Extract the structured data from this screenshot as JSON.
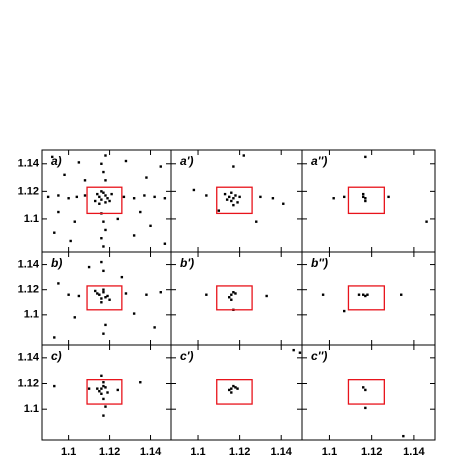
{
  "chart_data": [
    {
      "type": "scatter",
      "label": "a)",
      "color": "#000000",
      "box_color": "#e8131b",
      "box": [
        1.109,
        1.126,
        1.104,
        1.123
      ],
      "xlim": [
        1.087,
        1.15
      ],
      "ylim": [
        1.076,
        1.15
      ],
      "xticks": [
        1.1,
        1.12,
        1.14
      ],
      "yticks": [
        1.1,
        1.12,
        1.14
      ],
      "x": [
        1.115,
        1.118,
        1.116,
        1.119,
        1.114,
        1.117,
        1.12,
        1.113,
        1.116,
        1.121,
        1.118,
        1.115,
        1.09,
        1.095,
        1.1,
        1.104,
        1.108,
        1.127,
        1.132,
        1.137,
        1.142,
        1.147,
        1.117,
        1.116,
        1.118,
        1.117,
        1.116,
        1.118,
        1.117,
        1.116,
        1.118,
        1.092,
        1.098,
        1.105,
        1.128,
        1.138,
        1.145,
        1.093,
        1.101,
        1.132,
        1.14,
        1.147,
        1.124,
        1.108,
        1.135,
        1.095,
        1.103
      ],
      "y": [
        1.116,
        1.117,
        1.114,
        1.115,
        1.118,
        1.119,
        1.113,
        1.113,
        1.12,
        1.118,
        1.112,
        1.111,
        1.116,
        1.117,
        1.115,
        1.116,
        1.117,
        1.116,
        1.115,
        1.117,
        1.116,
        1.115,
        1.08,
        1.086,
        1.092,
        1.098,
        1.104,
        1.128,
        1.134,
        1.14,
        1.146,
        1.145,
        1.132,
        1.141,
        1.142,
        1.13,
        1.138,
        1.09,
        1.084,
        1.088,
        1.095,
        1.082,
        1.1,
        1.128,
        1.105,
        1.105,
        1.098
      ]
    },
    {
      "type": "scatter",
      "label": "a')",
      "color": "#000000",
      "box_color": "#e8131b",
      "box": [
        1.109,
        1.126,
        1.104,
        1.123
      ],
      "xlim": [
        1.087,
        1.15
      ],
      "ylim": [
        1.076,
        1.15
      ],
      "xticks": [
        1.1,
        1.12,
        1.14
      ],
      "yticks": [
        1.1,
        1.12,
        1.14
      ],
      "x": [
        1.115,
        1.117,
        1.116,
        1.118,
        1.114,
        1.119,
        1.116,
        1.117,
        1.12,
        1.113,
        1.098,
        1.104,
        1.13,
        1.136,
        1.117,
        1.122,
        1.11,
        1.128,
        1.141
      ],
      "y": [
        1.116,
        1.115,
        1.113,
        1.117,
        1.114,
        1.112,
        1.119,
        1.11,
        1.116,
        1.118,
        1.121,
        1.117,
        1.116,
        1.115,
        1.138,
        1.146,
        1.106,
        1.098,
        1.111
      ]
    },
    {
      "type": "scatter",
      "label": "a'')",
      "color": "#000000",
      "box_color": "#e8131b",
      "box": [
        1.109,
        1.126,
        1.104,
        1.123
      ],
      "xlim": [
        1.087,
        1.15
      ],
      "ylim": [
        1.076,
        1.15
      ],
      "xticks": [
        1.1,
        1.12,
        1.14
      ],
      "yticks": [
        1.1,
        1.12,
        1.14
      ],
      "x": [
        1.116,
        1.117,
        1.116,
        1.117,
        1.107,
        1.128,
        1.102,
        1.117,
        1.146
      ],
      "y": [
        1.116,
        1.115,
        1.118,
        1.113,
        1.116,
        1.116,
        1.115,
        1.145,
        1.098
      ]
    },
    {
      "type": "scatter",
      "label": "b)",
      "color": "#000000",
      "box_color": "#e8131b",
      "box": [
        1.109,
        1.126,
        1.104,
        1.123
      ],
      "xlim": [
        1.087,
        1.15
      ],
      "ylim": [
        1.076,
        1.15
      ],
      "xticks": [
        1.1,
        1.12,
        1.14
      ],
      "yticks": [
        1.1,
        1.12,
        1.14
      ],
      "x": [
        1.115,
        1.117,
        1.118,
        1.116,
        1.114,
        1.119,
        1.117,
        1.12,
        1.116,
        1.113,
        1.1,
        1.105,
        1.128,
        1.138,
        1.145,
        1.117,
        1.116,
        1.118,
        1.117,
        1.095,
        1.103,
        1.132,
        1.142,
        1.093,
        1.126,
        1.11
      ],
      "y": [
        1.116,
        1.118,
        1.114,
        1.113,
        1.117,
        1.115,
        1.12,
        1.112,
        1.11,
        1.119,
        1.116,
        1.115,
        1.117,
        1.116,
        1.118,
        1.135,
        1.142,
        1.092,
        1.085,
        1.125,
        1.098,
        1.101,
        1.09,
        1.082,
        1.13,
        1.138
      ]
    },
    {
      "type": "scatter",
      "label": "b')",
      "color": "#000000",
      "box_color": "#e8131b",
      "box": [
        1.109,
        1.126,
        1.104,
        1.123
      ],
      "xlim": [
        1.087,
        1.15
      ],
      "ylim": [
        1.076,
        1.15
      ],
      "xticks": [
        1.1,
        1.12,
        1.14
      ],
      "yticks": [
        1.1,
        1.12,
        1.14
      ],
      "x": [
        1.116,
        1.117,
        1.115,
        1.118,
        1.116,
        1.104,
        1.133,
        1.117
      ],
      "y": [
        1.116,
        1.118,
        1.114,
        1.117,
        1.112,
        1.116,
        1.115,
        1.104
      ]
    },
    {
      "type": "scatter",
      "label": "b'')",
      "color": "#000000",
      "box_color": "#e8131b",
      "box": [
        1.109,
        1.126,
        1.104,
        1.123
      ],
      "xlim": [
        1.087,
        1.15
      ],
      "ylim": [
        1.076,
        1.15
      ],
      "xticks": [
        1.1,
        1.12,
        1.14
      ],
      "yticks": [
        1.1,
        1.12,
        1.14
      ],
      "x": [
        1.114,
        1.116,
        1.117,
        1.118,
        1.097,
        1.134,
        1.107
      ],
      "y": [
        1.116,
        1.116,
        1.115,
        1.116,
        1.116,
        1.116,
        1.103
      ]
    },
    {
      "type": "scatter",
      "label": "c)",
      "color": "#000000",
      "box_color": "#e8131b",
      "box": [
        1.109,
        1.126,
        1.104,
        1.123
      ],
      "xlim": [
        1.087,
        1.15
      ],
      "ylim": [
        1.076,
        1.15
      ],
      "xticks": [
        1.1,
        1.12,
        1.14
      ],
      "yticks": [
        1.1,
        1.12,
        1.14
      ],
      "x": [
        1.116,
        1.117,
        1.115,
        1.118,
        1.116,
        1.117,
        1.114,
        1.119,
        1.117,
        1.116,
        1.118,
        1.117,
        1.093,
        1.135,
        1.124,
        1.11
      ],
      "y": [
        1.116,
        1.118,
        1.114,
        1.117,
        1.112,
        1.121,
        1.116,
        1.113,
        1.108,
        1.126,
        1.102,
        1.095,
        1.118,
        1.121,
        1.115,
        1.116
      ]
    },
    {
      "type": "scatter",
      "label": "c')",
      "color": "#000000",
      "box_color": "#e8131b",
      "box": [
        1.109,
        1.126,
        1.104,
        1.123
      ],
      "xlim": [
        1.087,
        1.15
      ],
      "ylim": [
        1.076,
        1.15
      ],
      "xticks": [
        1.1,
        1.12,
        1.14
      ],
      "yticks": [
        1.1,
        1.12,
        1.14
      ],
      "x": [
        1.116,
        1.117,
        1.115,
        1.118,
        1.116,
        1.119,
        1.146,
        1.149
      ],
      "y": [
        1.116,
        1.118,
        1.115,
        1.117,
        1.113,
        1.116,
        1.146,
        1.144
      ]
    },
    {
      "type": "scatter",
      "label": "c'')",
      "color": "#000000",
      "box_color": "#e8131b",
      "box": [
        1.109,
        1.126,
        1.104,
        1.123
      ],
      "xlim": [
        1.087,
        1.15
      ],
      "ylim": [
        1.076,
        1.15
      ],
      "xticks": [
        1.1,
        1.12,
        1.14
      ],
      "yticks": [
        1.1,
        1.12,
        1.14
      ],
      "x": [
        1.116,
        1.117,
        1.117,
        1.135
      ],
      "y": [
        1.117,
        1.115,
        1.101,
        1.079
      ]
    }
  ]
}
